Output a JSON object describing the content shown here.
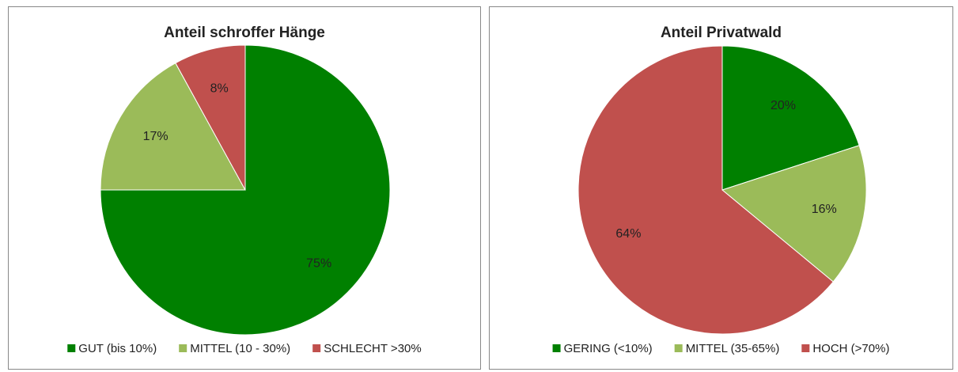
{
  "chart_data": [
    {
      "type": "pie",
      "title": "Anteil schroffer Hänge",
      "categories": [
        "GUT (bis 10%)",
        "MITTEL (10 - 30%)",
        "SCHLECHT >30%"
      ],
      "values": [
        75,
        17,
        8
      ],
      "value_labels": [
        "75%",
        "17%",
        "8%"
      ],
      "colors": [
        "#008000",
        "#9bbb59",
        "#c0504d"
      ],
      "legend": "bottom"
    },
    {
      "type": "pie",
      "title": "Anteil Privatwald",
      "categories": [
        "GERING (<10%)",
        "MITTEL (35-65%)",
        "HOCH (>70%)"
      ],
      "values": [
        20,
        16,
        64
      ],
      "value_labels": [
        "20%",
        "16%",
        "64%"
      ],
      "colors": [
        "#008000",
        "#9bbb59",
        "#c0504d"
      ],
      "legend": "bottom"
    }
  ]
}
